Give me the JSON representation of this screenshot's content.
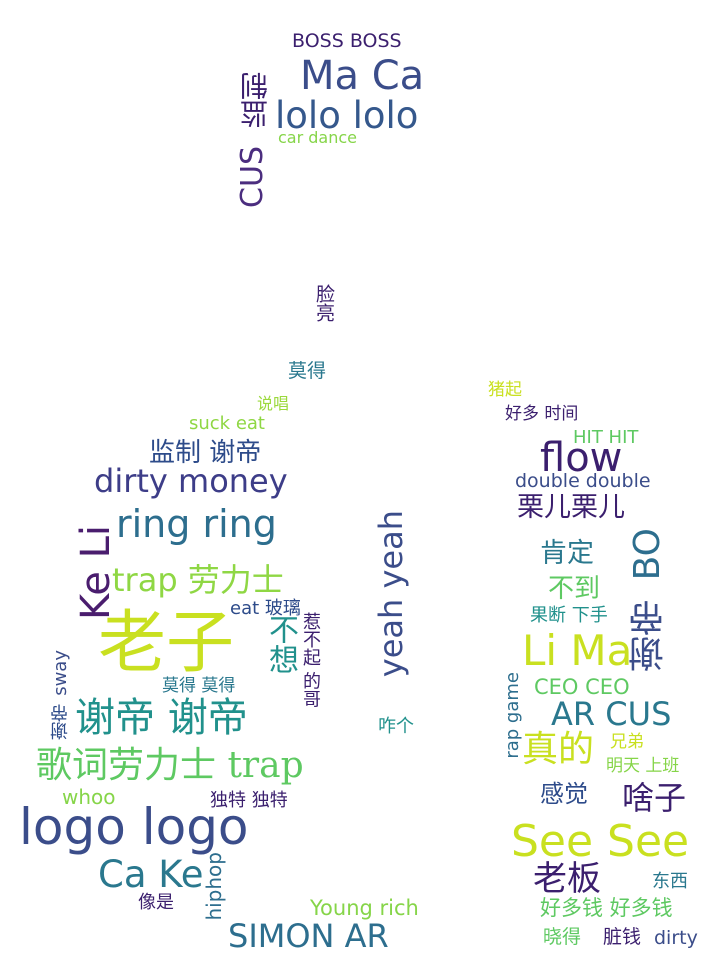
{
  "word_cloud": {
    "words": [
      {
        "text": "BOSS BOSS",
        "color": "#3b1f6e"
      },
      {
        "text": "Ma Ca",
        "color": "#3b4d8a"
      },
      {
        "text": "lolo lolo",
        "color": "#35588c"
      },
      {
        "text": "监制",
        "color": "#3b1f6e"
      },
      {
        "text": "car dance",
        "color": "#86d549"
      },
      {
        "text": "CUS",
        "color": "#4b2d7f"
      },
      {
        "text": "脸亮",
        "color": "#3b1f6e"
      },
      {
        "text": "莫得",
        "color": "#2a788e"
      },
      {
        "text": "说唱",
        "color": "#9bd93c"
      },
      {
        "text": "suck eat",
        "color": "#8fd744"
      },
      {
        "text": "监制 谢帝",
        "color": "#2d4b8a"
      },
      {
        "text": "dirty money",
        "color": "#3d3d88"
      },
      {
        "text": "ring ring",
        "color": "#2d6e8e"
      },
      {
        "text": "Ke Li",
        "color": "#4a1d6e"
      },
      {
        "text": "trap 劳力士",
        "color": "#8fd744"
      },
      {
        "text": "eat 玻璃",
        "color": "#2d4b8a"
      },
      {
        "text": "不想",
        "color": "#21918c"
      },
      {
        "text": "老子",
        "color": "#c9e020"
      },
      {
        "text": "惹不起 的哥",
        "color": "#3b1f6e"
      },
      {
        "text": "sway",
        "color": "#3b4d8a"
      },
      {
        "text": "谢帝",
        "color": "#2d4b8a"
      },
      {
        "text": "莫得 莫得",
        "color": "#2a788e"
      },
      {
        "text": "谢帝 谢帝",
        "color": "#21918c"
      },
      {
        "text": "歌词劳力士 trap",
        "color": "#5ec962"
      },
      {
        "text": "whoo",
        "color": "#86d549"
      },
      {
        "text": "独特 独特",
        "color": "#3b1f6e"
      },
      {
        "text": "logo logo",
        "color": "#3b4d8a"
      },
      {
        "text": "Ca Ke",
        "color": "#2a788e"
      },
      {
        "text": "hiphop",
        "color": "#2d6e8e"
      },
      {
        "text": "像是",
        "color": "#3b1f6e"
      },
      {
        "text": "Young rich",
        "color": "#86d549"
      },
      {
        "text": "SIMON AR",
        "color": "#2d6e8e"
      },
      {
        "text": "yeah yeah",
        "color": "#3b4d8a"
      },
      {
        "text": "咋个",
        "color": "#21918c"
      },
      {
        "text": "猪起",
        "color": "#c9e020"
      },
      {
        "text": "好多 时间",
        "color": "#3b1f6e"
      },
      {
        "text": "HIT HIT",
        "color": "#5ec962"
      },
      {
        "text": "flow",
        "color": "#3b1f6e"
      },
      {
        "text": "double double",
        "color": "#3b4d8a"
      },
      {
        "text": "栗儿栗儿",
        "color": "#3b1f6e"
      },
      {
        "text": "肯定",
        "color": "#2a788e"
      },
      {
        "text": "BO",
        "color": "#2d6e8e"
      },
      {
        "text": "不到",
        "color": "#5ec962"
      },
      {
        "text": "果断 下手",
        "color": "#21918c"
      },
      {
        "text": "谢帝",
        "color": "#3b4d8a"
      },
      {
        "text": "Li Ma",
        "color": "#c9e020"
      },
      {
        "text": "rap game",
        "color": "#2d6e8e"
      },
      {
        "text": "CEO CEO",
        "color": "#5ec962"
      },
      {
        "text": "AR CUS",
        "color": "#2a788e"
      },
      {
        "text": "真的",
        "color": "#c9e020"
      },
      {
        "text": "兄弟",
        "color": "#c9e020"
      },
      {
        "text": "明天 上班",
        "color": "#86d549"
      },
      {
        "text": "感觉",
        "color": "#2d4b8a"
      },
      {
        "text": "啥子",
        "color": "#3b1f6e"
      },
      {
        "text": "See See",
        "color": "#c9e020"
      },
      {
        "text": "老板",
        "color": "#3b1f6e"
      },
      {
        "text": "东西",
        "color": "#2a788e"
      },
      {
        "text": "好多钱 好多钱",
        "color": "#5ec962"
      },
      {
        "text": "晓得",
        "color": "#5ec962"
      },
      {
        "text": "脏钱",
        "color": "#3b1f6e"
      },
      {
        "text": "dirty",
        "color": "#3b4d8a"
      }
    ]
  }
}
